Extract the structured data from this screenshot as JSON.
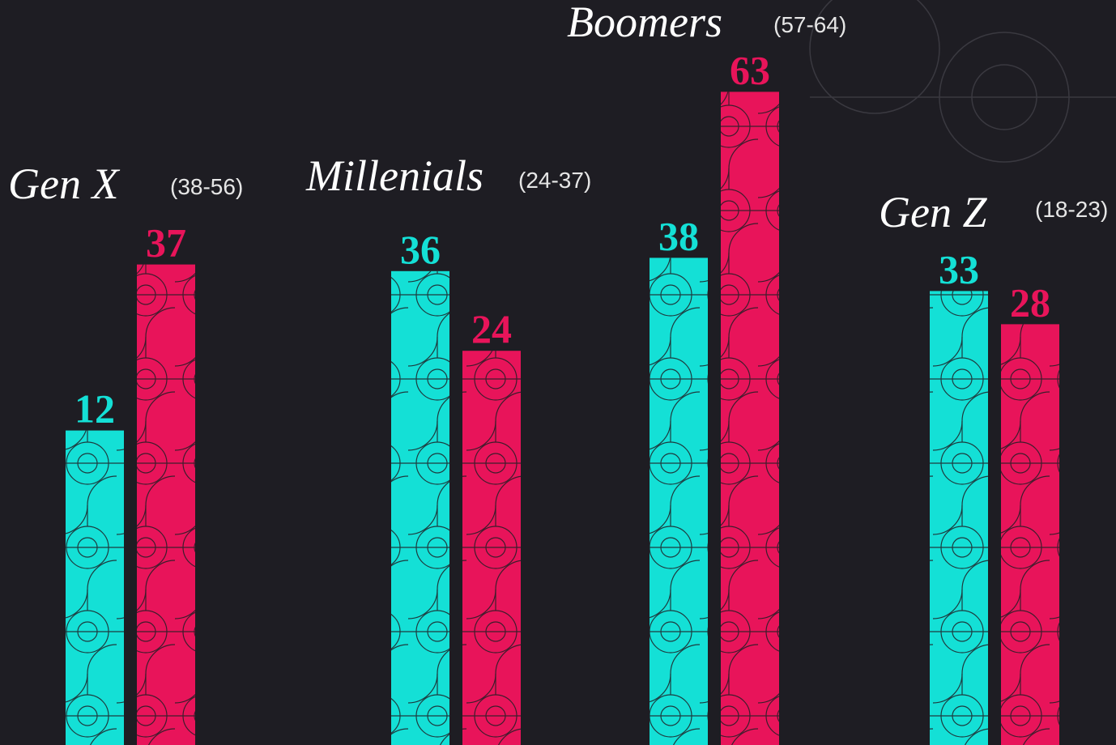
{
  "chart_data": {
    "type": "bar",
    "categories": [
      "Gen X",
      "Millenials",
      "Boomers",
      "Gen Z"
    ],
    "category_ranges": [
      "(38-56)",
      "(24-37)",
      "(57-64)",
      "(18-23)"
    ],
    "series": [
      {
        "color": "#14e0d6",
        "values": [
          12,
          36,
          38,
          33
        ]
      },
      {
        "color": "#e8145a",
        "values": [
          37,
          24,
          63,
          28
        ]
      }
    ]
  }
}
